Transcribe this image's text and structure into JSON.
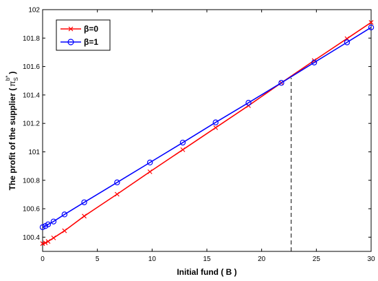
{
  "chart_data": {
    "type": "line",
    "xlabel": "Initial fund ( B )",
    "ylabel": "The profit of the supplier (",
    "ylabel_symbol": "π",
    "ylabel_sub": "S",
    "ylabel_sup": "b*",
    "ylabel_close": ")",
    "xlim": [
      0,
      30
    ],
    "ylim": [
      100.3,
      102
    ],
    "xticks": [
      0,
      5,
      10,
      15,
      20,
      25,
      30
    ],
    "xtick_labels": [
      "0",
      "5",
      "10",
      "15",
      "20",
      "25",
      "30"
    ],
    "yticks": [
      100.4,
      100.6,
      100.8,
      101,
      101.2,
      101.4,
      101.6,
      101.8,
      102
    ],
    "ytick_labels": [
      "100.4",
      "100.6",
      "100.8",
      "101",
      "101.2",
      "101.4",
      "101.6",
      "101.8",
      "102"
    ],
    "grid": false,
    "legend_position": "top-left",
    "reference_line": {
      "x": 22.7,
      "y_from": 100.3,
      "y_to": 101.52,
      "style": "dashed"
    },
    "series": [
      {
        "name": "β=0",
        "color": "#ff0000",
        "marker": "x",
        "points": [
          [
            0,
            100.355
          ],
          [
            0.25,
            100.36
          ],
          [
            0.5,
            100.37
          ],
          [
            1,
            100.395
          ],
          [
            2,
            100.445
          ],
          [
            3.8,
            100.548
          ],
          [
            6.8,
            100.702
          ],
          [
            9.8,
            100.86
          ],
          [
            12.8,
            101.015
          ],
          [
            15.8,
            101.17
          ],
          [
            18.8,
            101.325
          ],
          [
            21.8,
            101.485
          ],
          [
            24.8,
            101.642
          ],
          [
            27.8,
            101.796
          ],
          [
            30,
            101.91
          ]
        ]
      },
      {
        "name": "β=1",
        "color": "#0000ff",
        "marker": "o",
        "points": [
          [
            0,
            100.47
          ],
          [
            0.25,
            100.478
          ],
          [
            0.5,
            100.49
          ],
          [
            1,
            100.51
          ],
          [
            2,
            100.56
          ],
          [
            3.8,
            100.645
          ],
          [
            6.8,
            100.785
          ],
          [
            9.8,
            100.925
          ],
          [
            12.8,
            101.065
          ],
          [
            15.8,
            101.207
          ],
          [
            18.8,
            101.345
          ],
          [
            21.8,
            101.485
          ],
          [
            24.8,
            101.628
          ],
          [
            27.8,
            101.77
          ],
          [
            30,
            101.875
          ]
        ]
      }
    ]
  }
}
